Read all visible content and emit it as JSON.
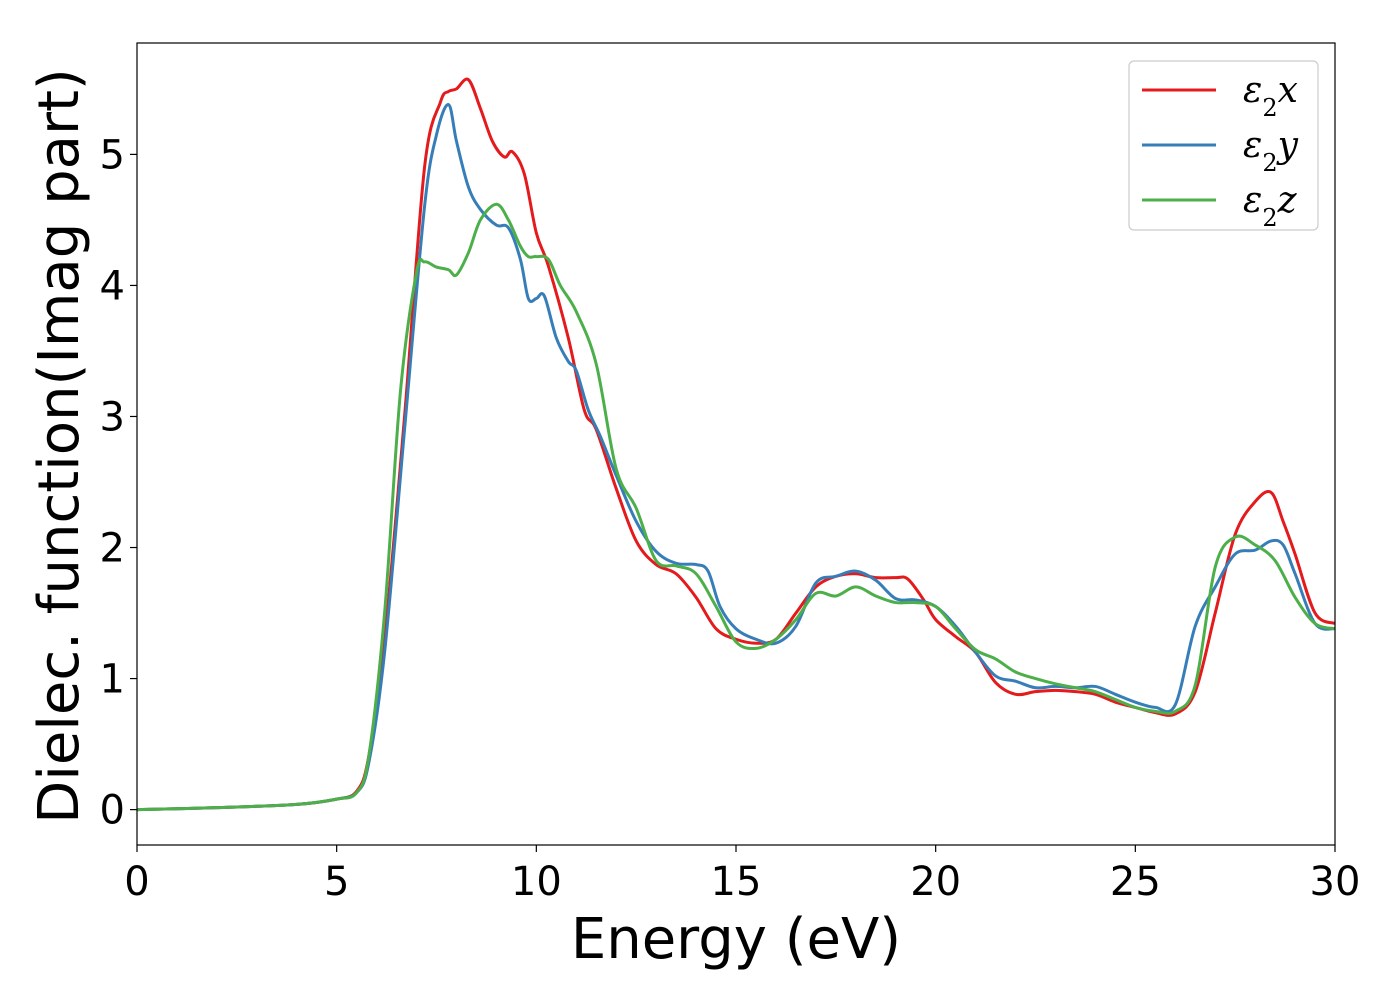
{
  "chart_data": {
    "type": "line",
    "title": "",
    "xlabel": "Energy (eV)",
    "ylabel": "Dielec. function(Imag part)",
    "xlim": [
      0,
      30
    ],
    "ylim": [
      -0.27,
      5.85
    ],
    "xticks": [
      0,
      5,
      10,
      15,
      20,
      25,
      30
    ],
    "yticks": [
      0,
      1,
      2,
      3,
      4,
      5
    ],
    "grid": false,
    "legend_position": "top-right",
    "series": [
      {
        "name": "ε2x",
        "label_main": "ε",
        "label_sub": "2",
        "label_var": "x",
        "color": "#e41a1c",
        "x": [
          0,
          2,
          4,
          5,
          5.5,
          5.8,
          6.2,
          6.7,
          7.2,
          7.6,
          7.8,
          8.0,
          8.3,
          8.6,
          8.9,
          9.2,
          9.4,
          9.7,
          10.0,
          10.3,
          10.8,
          11.2,
          11.5,
          12.0,
          12.5,
          13.0,
          13.5,
          14.0,
          14.5,
          15.0,
          15.5,
          16.0,
          16.5,
          17.0,
          17.5,
          18.0,
          18.5,
          19.0,
          19.3,
          19.7,
          20.0,
          20.5,
          21.0,
          21.5,
          22.0,
          22.5,
          23.0,
          23.5,
          24.0,
          24.5,
          25.0,
          25.5,
          26.0,
          26.5,
          27.0,
          27.5,
          28.0,
          28.4,
          28.7,
          29.0,
          29.5,
          30.0
        ],
        "y": [
          0.0,
          0.015,
          0.04,
          0.08,
          0.14,
          0.4,
          1.3,
          3.0,
          4.9,
          5.4,
          5.48,
          5.5,
          5.57,
          5.35,
          5.1,
          4.98,
          5.02,
          4.85,
          4.4,
          4.15,
          3.6,
          3.05,
          2.9,
          2.45,
          2.05,
          1.87,
          1.8,
          1.62,
          1.38,
          1.3,
          1.27,
          1.3,
          1.5,
          1.7,
          1.78,
          1.8,
          1.77,
          1.77,
          1.76,
          1.6,
          1.45,
          1.32,
          1.2,
          0.97,
          0.88,
          0.9,
          0.91,
          0.9,
          0.88,
          0.82,
          0.78,
          0.74,
          0.73,
          0.9,
          1.5,
          2.1,
          2.35,
          2.42,
          2.2,
          1.95,
          1.5,
          1.42
        ]
      },
      {
        "name": "ε2y",
        "label_main": "ε",
        "label_sub": "2",
        "label_var": "y",
        "color": "#377eb8",
        "x": [
          0,
          2,
          4,
          5,
          5.5,
          5.8,
          6.2,
          6.7,
          7.2,
          7.5,
          7.8,
          8.0,
          8.3,
          8.6,
          9.0,
          9.3,
          9.6,
          9.8,
          10.0,
          10.2,
          10.5,
          10.8,
          11.0,
          11.3,
          11.6,
          12.0,
          12.5,
          13.0,
          13.5,
          14.0,
          14.3,
          14.6,
          15.0,
          15.5,
          16.0,
          16.5,
          17.0,
          17.5,
          18.0,
          18.5,
          19.0,
          19.5,
          20.0,
          20.5,
          21.0,
          21.5,
          22.0,
          22.5,
          23.0,
          23.5,
          24.0,
          24.5,
          25.0,
          25.5,
          26.0,
          26.5,
          27.0,
          27.5,
          28.0,
          28.4,
          28.7,
          29.0,
          29.5,
          30.0
        ],
        "y": [
          0.0,
          0.015,
          0.04,
          0.08,
          0.13,
          0.35,
          1.2,
          2.9,
          4.6,
          5.15,
          5.38,
          5.1,
          4.75,
          4.58,
          4.46,
          4.44,
          4.2,
          3.9,
          3.9,
          3.92,
          3.6,
          3.42,
          3.35,
          3.05,
          2.85,
          2.55,
          2.2,
          1.97,
          1.88,
          1.87,
          1.82,
          1.55,
          1.38,
          1.3,
          1.27,
          1.4,
          1.73,
          1.78,
          1.82,
          1.75,
          1.61,
          1.6,
          1.55,
          1.4,
          1.2,
          1.02,
          0.98,
          0.93,
          0.94,
          0.93,
          0.94,
          0.88,
          0.82,
          0.78,
          0.8,
          1.4,
          1.7,
          1.95,
          1.98,
          2.05,
          2.02,
          1.8,
          1.42,
          1.38
        ]
      },
      {
        "name": "ε2z",
        "label_main": "ε",
        "label_sub": "2",
        "label_var": "z",
        "color": "#4daf4a",
        "x": [
          0,
          2,
          4,
          5,
          5.5,
          5.8,
          6.2,
          6.6,
          7.0,
          7.2,
          7.5,
          7.8,
          8.0,
          8.3,
          8.6,
          9.0,
          9.3,
          9.6,
          9.8,
          10.0,
          10.3,
          10.6,
          11.0,
          11.5,
          12.0,
          12.5,
          13.0,
          13.5,
          14.0,
          14.5,
          15.0,
          15.5,
          16.0,
          16.5,
          17.0,
          17.5,
          18.0,
          18.5,
          19.0,
          19.5,
          20.0,
          20.5,
          21.0,
          21.5,
          22.0,
          22.5,
          23.0,
          23.5,
          24.0,
          24.5,
          25.0,
          25.5,
          26.0,
          26.5,
          27.0,
          27.5,
          28.0,
          28.5,
          29.0,
          29.5,
          30.0
        ],
        "y": [
          0.0,
          0.015,
          0.04,
          0.08,
          0.13,
          0.4,
          1.5,
          3.2,
          4.1,
          4.18,
          4.14,
          4.12,
          4.08,
          4.25,
          4.5,
          4.62,
          4.5,
          4.3,
          4.22,
          4.22,
          4.2,
          4.0,
          3.8,
          3.4,
          2.6,
          2.3,
          1.9,
          1.86,
          1.8,
          1.55,
          1.28,
          1.23,
          1.3,
          1.45,
          1.65,
          1.63,
          1.7,
          1.63,
          1.58,
          1.58,
          1.55,
          1.38,
          1.22,
          1.15,
          1.05,
          1.0,
          0.96,
          0.93,
          0.9,
          0.84,
          0.78,
          0.75,
          0.75,
          0.95,
          1.85,
          2.08,
          2.02,
          1.9,
          1.62,
          1.42,
          1.38
        ]
      }
    ]
  }
}
